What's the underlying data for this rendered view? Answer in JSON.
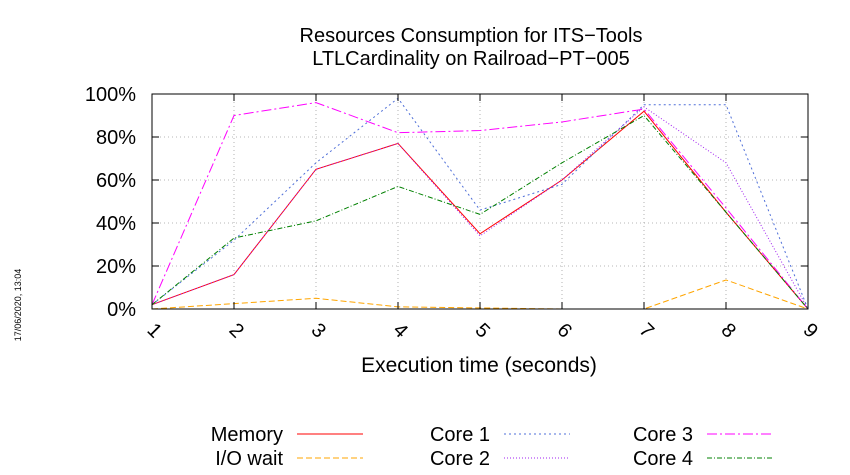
{
  "chart_data": {
    "type": "line",
    "title_lines": [
      "Resources Consumption for ITS−Tools",
      "LTLCardinality on Railroad−PT−005"
    ],
    "xlabel": "Execution time (seconds)",
    "ylabel": "",
    "side_note": "17/06/2020, 13:04",
    "x": [
      1,
      2,
      3,
      4,
      5,
      6,
      7,
      8,
      9
    ],
    "xlim": [
      1,
      9
    ],
    "ylim": [
      0,
      100
    ],
    "y_ticks": [
      0,
      20,
      40,
      60,
      80,
      100
    ],
    "y_tick_labels": [
      "0%",
      "20%",
      "40%",
      "60%",
      "80%",
      "100%"
    ],
    "grid": true,
    "legend_position": "bottom",
    "series": [
      {
        "name": "Memory",
        "color": "#ff0000",
        "dash": "",
        "values": [
          2,
          16,
          65,
          77,
          35,
          60,
          92,
          45,
          0
        ]
      },
      {
        "name": "I/O wait",
        "color": "#ffa500",
        "dash": "6,3",
        "values": [
          0,
          2.5,
          5,
          1,
          0.5,
          0,
          0,
          13.5,
          0
        ]
      },
      {
        "name": "Core 1",
        "color": "#4f6fd8",
        "dash": "2,3",
        "values": [
          2,
          32,
          68,
          98,
          46,
          58,
          95,
          95,
          0
        ]
      },
      {
        "name": "Core 2",
        "color": "#a020f0",
        "dash": "1,2",
        "values": [
          2,
          16,
          65,
          77,
          34,
          60,
          94,
          68,
          0
        ]
      },
      {
        "name": "Core 3",
        "color": "#ff00ff",
        "dash": "10,3,2,3",
        "values": [
          2,
          90,
          96,
          82,
          83,
          87,
          93,
          47,
          0
        ]
      },
      {
        "name": "Core 4",
        "color": "#008000",
        "dash": "5,2,1,2",
        "values": [
          2,
          33,
          41,
          57,
          44,
          68,
          90,
          45,
          0
        ]
      }
    ]
  }
}
